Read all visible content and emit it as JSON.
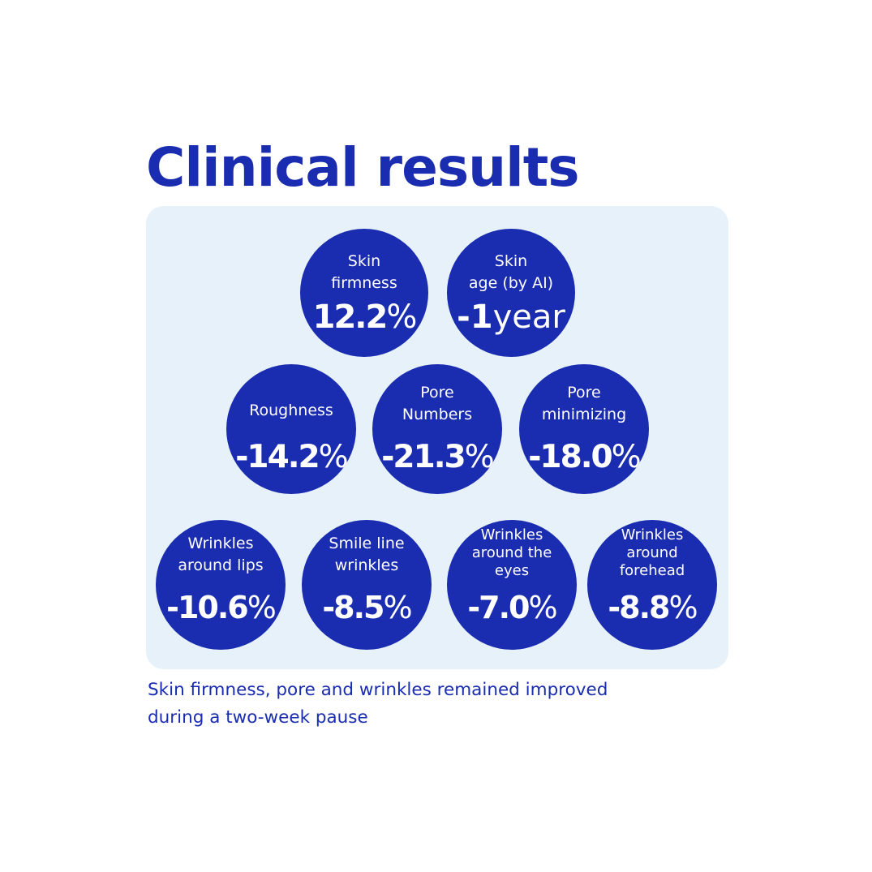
{
  "title": "Clinical results",
  "results": [
    {
      "label": "Skin\nfirmness",
      "value": "12.2",
      "unit": "%"
    },
    {
      "label": "Skin\nage (by AI)",
      "value": "-1",
      "unit": "year"
    },
    {
      "label": "Roughness",
      "value": "-14.2",
      "unit": "%"
    },
    {
      "label": "Pore\nNumbers",
      "value": "-21.3",
      "unit": "%"
    },
    {
      "label": "Pore\nminimizing",
      "value": "-18.0",
      "unit": "%"
    },
    {
      "label": "Wrinkles\naround lips",
      "value": "-10.6",
      "unit": "%"
    },
    {
      "label": "Smile line\nwrinkles",
      "value": "-8.5",
      "unit": "%"
    },
    {
      "label": "Wrinkles\naround the\neyes",
      "value": "-7.0",
      "unit": "%"
    },
    {
      "label": "Wrinkles\naround\nforehead",
      "value": "-8.8",
      "unit": "%"
    }
  ],
  "footnote": "Skin firmness, pore and wrinkles remained improved\nduring a two-week pause",
  "colors": {
    "accent": "#1a2cb0",
    "panel": "#e7f1f9"
  }
}
